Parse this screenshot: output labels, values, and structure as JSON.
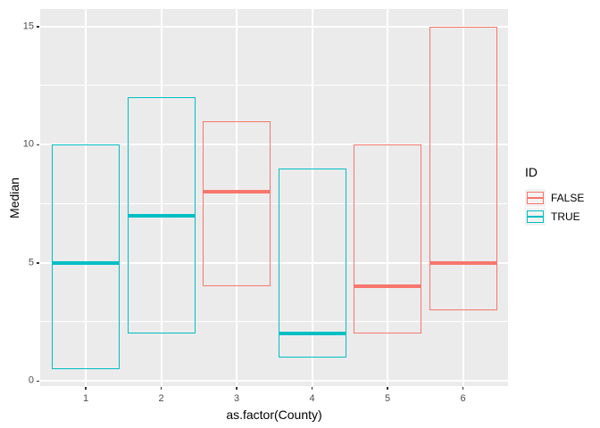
{
  "chart_data": {
    "type": "bar",
    "subtype": "crossbar-boxplot",
    "title": "",
    "xlabel": "as.factor(County)",
    "ylabel": "Median",
    "x_categories": [
      "1",
      "2",
      "3",
      "4",
      "5",
      "6"
    ],
    "y_ticks": [
      0,
      5,
      10,
      15
    ],
    "y_minor_ticks": [
      2.5,
      7.5,
      12.5
    ],
    "ylim": [
      -0.225,
      15.725
    ],
    "grid": "on",
    "legend_position": "right",
    "legend": {
      "title": "ID",
      "entries": [
        {
          "label": "FALSE",
          "color": "#F8766D"
        },
        {
          "label": "TRUE",
          "color": "#00BFC4"
        }
      ]
    },
    "boxes": [
      {
        "county": "1",
        "id": "TRUE",
        "ymin": 0.5,
        "middle": 5,
        "ymax": 10
      },
      {
        "county": "2",
        "id": "TRUE",
        "ymin": 2,
        "middle": 7,
        "ymax": 12
      },
      {
        "county": "3",
        "id": "FALSE",
        "ymin": 4,
        "middle": 8,
        "ymax": 11
      },
      {
        "county": "4",
        "id": "TRUE",
        "ymin": 1,
        "middle": 2,
        "ymax": 9
      },
      {
        "county": "5",
        "id": "FALSE",
        "ymin": 2,
        "middle": 4,
        "ymax": 10
      },
      {
        "county": "6",
        "id": "FALSE",
        "ymin": 3,
        "middle": 5,
        "ymax": 15
      }
    ],
    "colors": {
      "false_series": "#F8766D",
      "true_series": "#00BFC4",
      "panel_background": "#EBEBEB",
      "gridline": "#FFFFFF",
      "axis_text": "#4D4D4D",
      "tick_mark": "#333333",
      "title_text": "#000000",
      "legend_key_background": "#F2F2F2"
    }
  }
}
